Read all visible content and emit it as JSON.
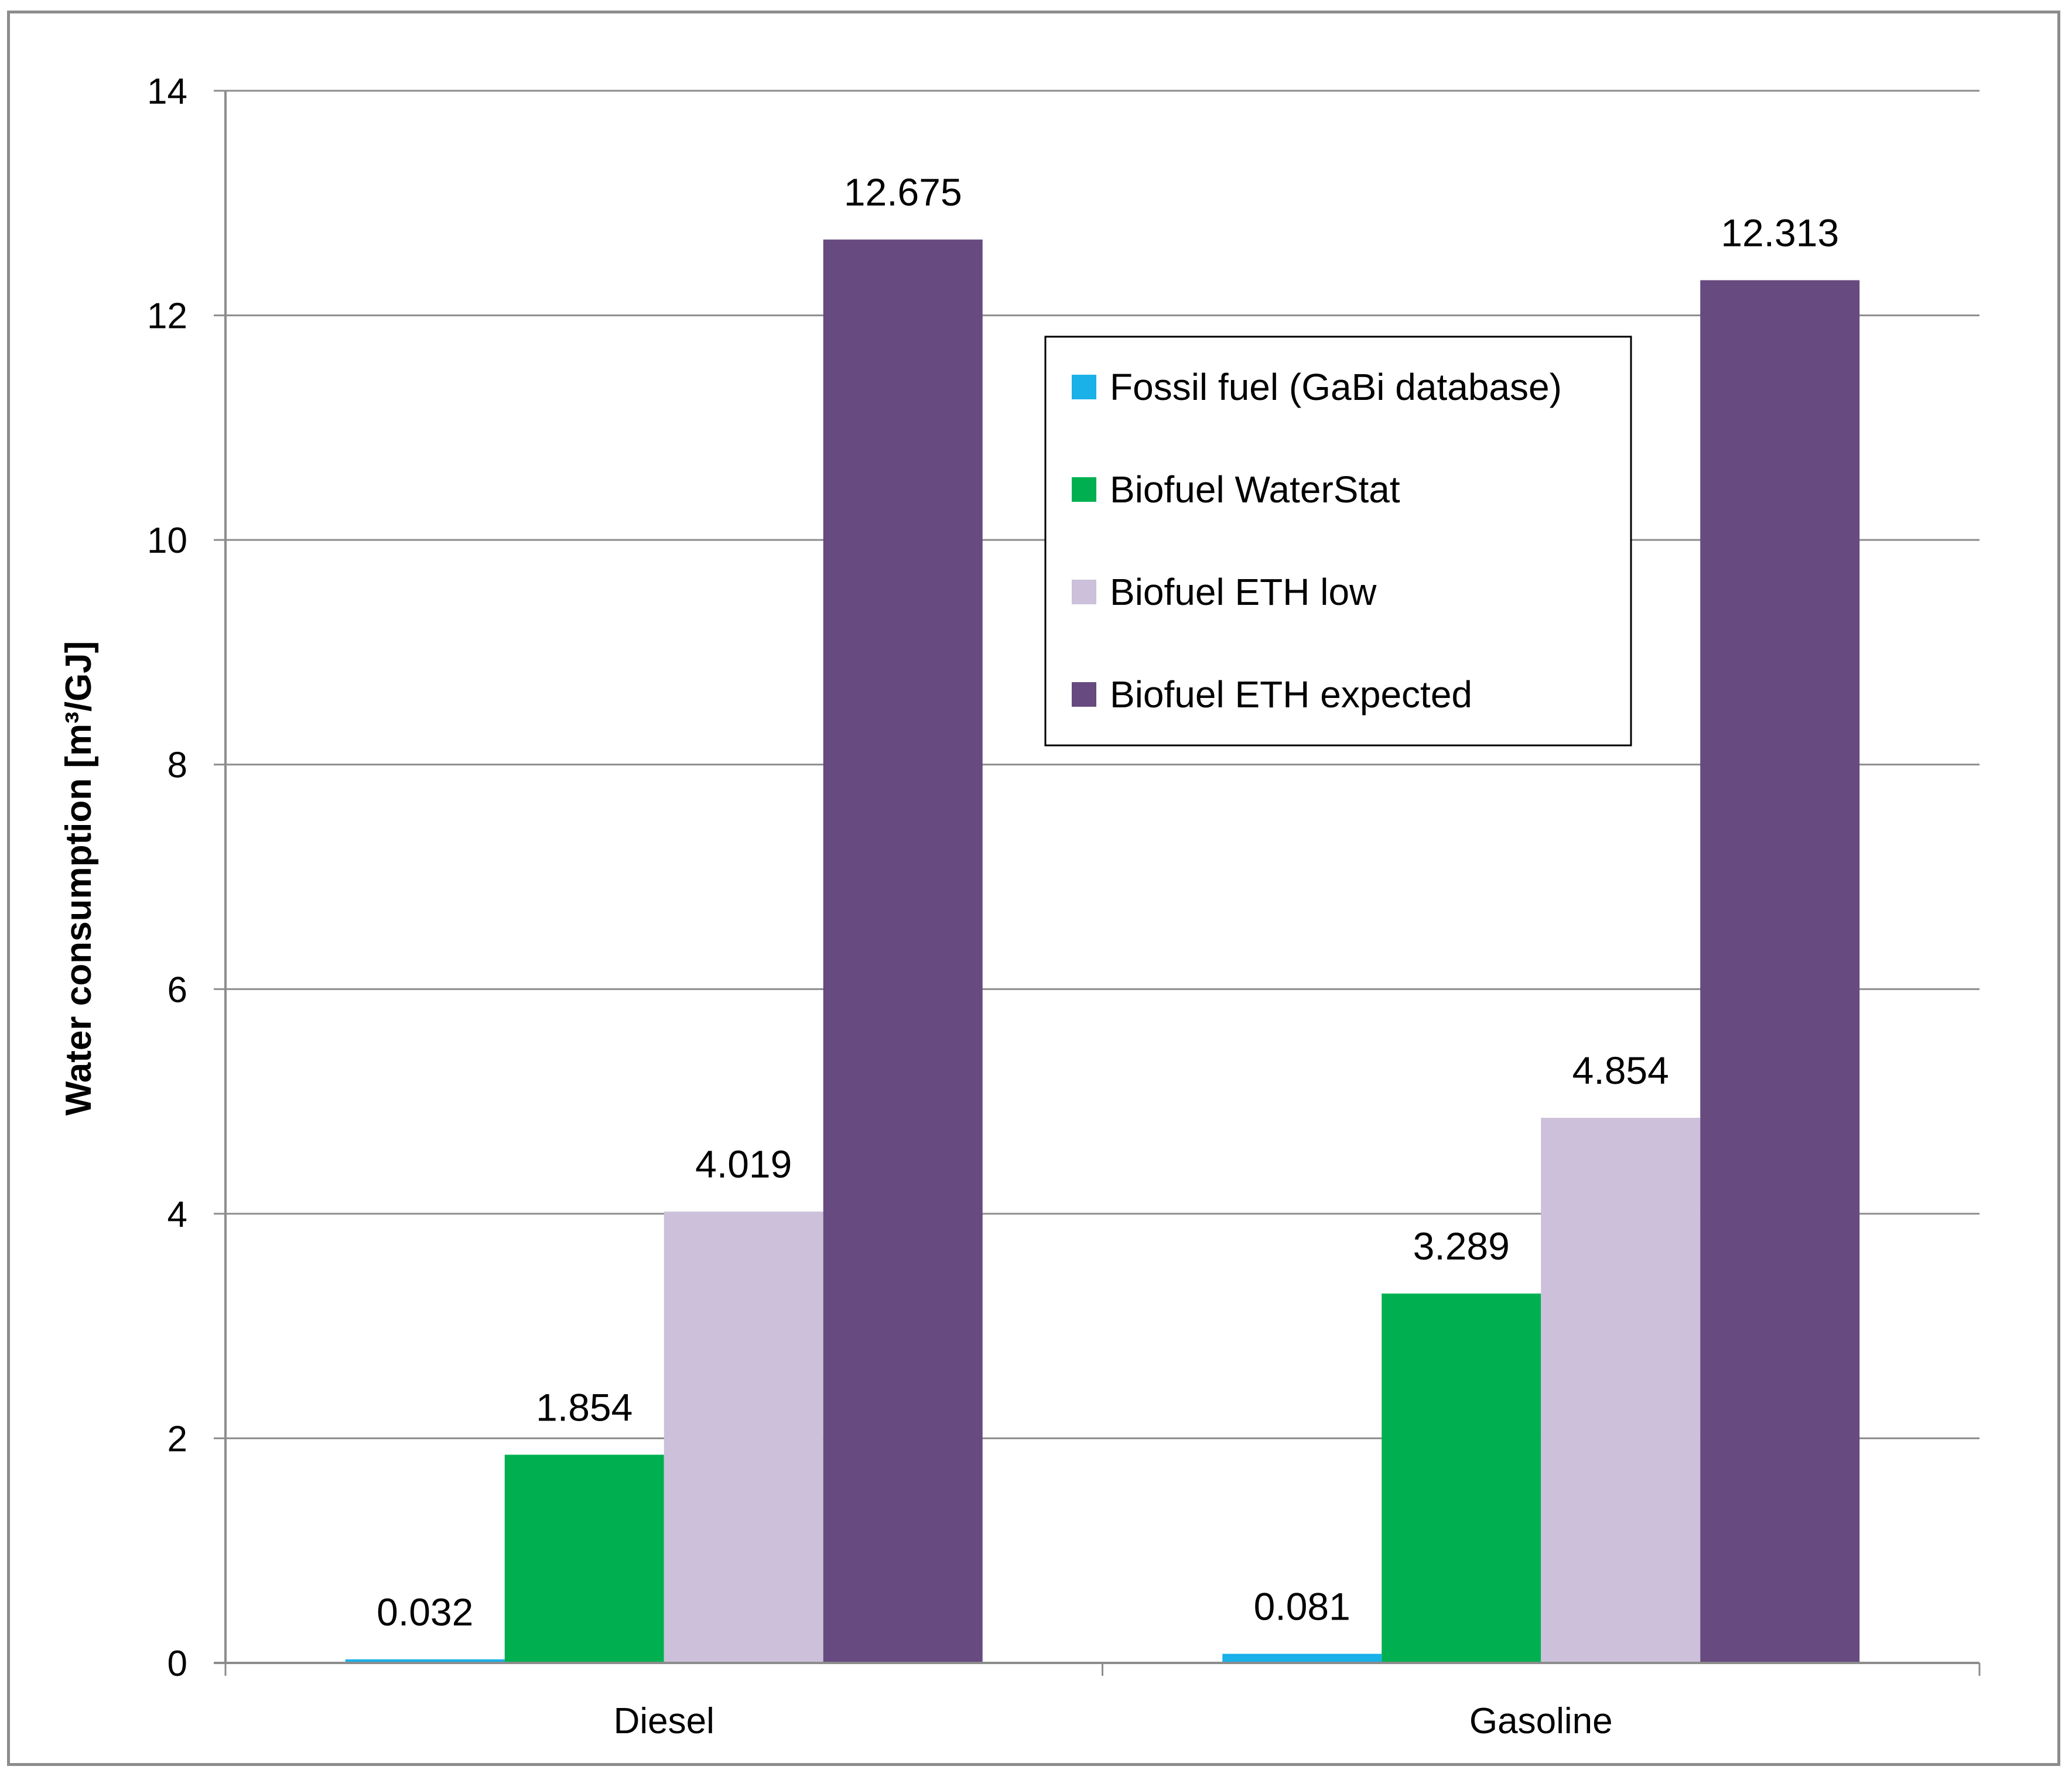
{
  "chart_data": {
    "type": "bar",
    "title": "",
    "xlabel": "",
    "ylabel": "Water consumption [m³/GJ]",
    "ylim": [
      0,
      14
    ],
    "yticks": [
      0,
      2,
      4,
      6,
      8,
      10,
      12,
      14
    ],
    "ytick_labels": [
      "0",
      "2",
      "4",
      "6",
      "8",
      "10",
      "12",
      "14"
    ],
    "grid": true,
    "legend_position": "top-right, inside plot",
    "categories": [
      "Diesel",
      "Gasoline"
    ],
    "series": [
      {
        "name": "Fossil fuel (GaBi database)",
        "color": "#1ab0e8",
        "values": [
          0.032,
          0.081
        ],
        "labels": [
          "0.032",
          "0.081"
        ]
      },
      {
        "name": "Biofuel WaterStat",
        "color": "#00b050",
        "values": [
          1.854,
          3.289
        ],
        "labels": [
          "1.854",
          "3.289"
        ]
      },
      {
        "name": "Biofuel ETH low",
        "color": "#ccc0da",
        "values": [
          4.019,
          4.854
        ],
        "labels": [
          "4.019",
          "4.854"
        ]
      },
      {
        "name": "Biofuel ETH expected",
        "color": "#674a7f",
        "values": [
          12.675,
          12.313
        ],
        "labels": [
          "12.675",
          "12.313"
        ]
      }
    ]
  }
}
